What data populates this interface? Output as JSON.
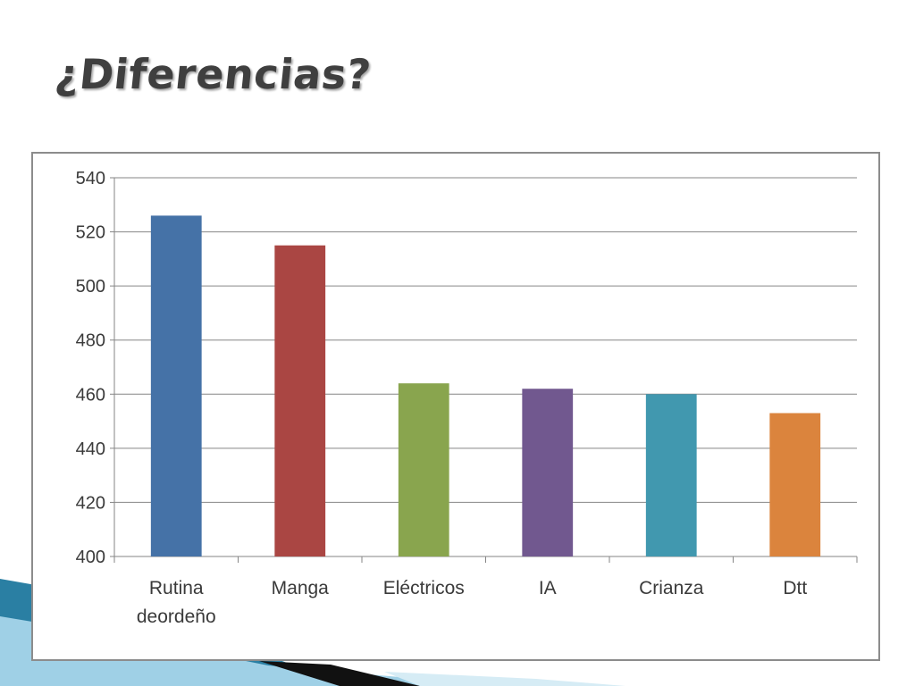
{
  "slide": {
    "title": "¿Diferencias?"
  },
  "chart_data": {
    "type": "bar",
    "categories": [
      "Rutina deordeño",
      "Manga",
      "Eléctricos",
      "IA",
      "Crianza",
      "Dtt"
    ],
    "category_lines": [
      [
        "Rutina",
        "deordeño"
      ],
      [
        "Manga"
      ],
      [
        "Eléctricos"
      ],
      [
        "IA"
      ],
      [
        "Crianza"
      ],
      [
        "Dtt"
      ]
    ],
    "values": [
      526,
      515,
      464,
      462,
      460,
      453
    ],
    "colors": [
      "#4572A7",
      "#AA4643",
      "#89A54E",
      "#71588F",
      "#4198AF",
      "#DB843D"
    ],
    "ylim": [
      400,
      540
    ],
    "yticks": [
      400,
      420,
      440,
      460,
      480,
      500,
      520,
      540
    ],
    "title": "",
    "xlabel": "",
    "ylabel": "",
    "grid": true,
    "legend": "none"
  }
}
